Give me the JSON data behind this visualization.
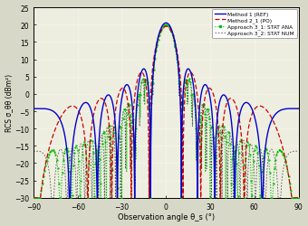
{
  "xlabel": "Observation angle θ_s (°)",
  "ylabel": "RCS σ_θθ (dBm²)",
  "xlim": [
    -90,
    90
  ],
  "ylim": [
    -30,
    25
  ],
  "xticks": [
    -90,
    -60,
    -30,
    0,
    30,
    60,
    90
  ],
  "yticks": [
    -30,
    -25,
    -20,
    -15,
    -10,
    -5,
    0,
    5,
    10,
    15,
    20,
    25
  ],
  "legend_labels": [
    "Method 1 (REF)",
    "Method 2_1 (PO)",
    "Approach 3_1: STAT ANA",
    "Approach 3_2: STAT NUM"
  ],
  "color_m1": "#0000cc",
  "color_m2": "#cc0000",
  "color_a31": "#00bb00",
  "color_a32": "#555555",
  "fig_bg": "#d8d8c8",
  "ax_bg": "#eeeee0"
}
